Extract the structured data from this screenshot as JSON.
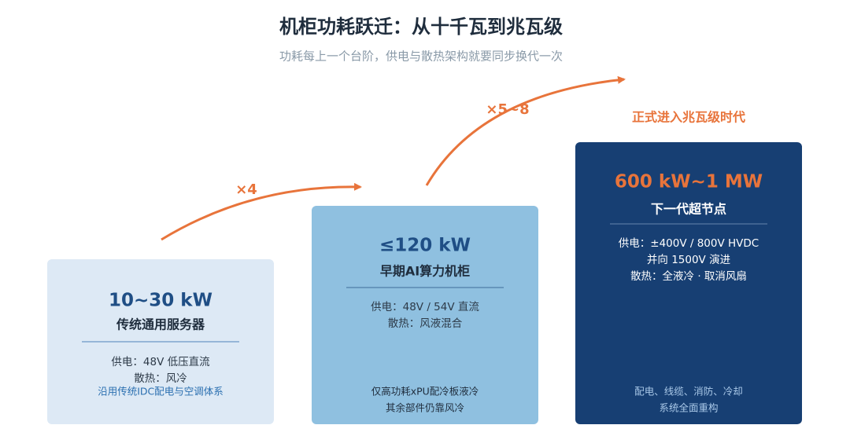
{
  "header": {
    "title": "机柜功耗跃迁：从十千瓦到兆瓦级",
    "subtitle": "功耗每上一个台阶，供电与散热架构就要同步换代一次"
  },
  "stages": [
    {
      "value": "10~30 kW",
      "name": "传统通用服务器",
      "specs": [
        "供电：48V 低压直流",
        "散热：风冷"
      ],
      "notes": [
        "沿用传统IDC配电与空调体系"
      ]
    },
    {
      "value": "≤120 kW",
      "name": "早期AI算力机柜",
      "specs": [
        "供电：48V / 54V 直流",
        "散热：风液混合"
      ],
      "notes": [
        "仅高功耗xPU配冷板液冷",
        "其余部件仍靠风冷"
      ]
    },
    {
      "value": "600 kW~1 MW",
      "name": "下一代超节点",
      "specs": [
        "供电：±400V / 800V HVDC",
        "并向 1500V 演进",
        "散热：全液冷 · 取消风扇"
      ],
      "notes": [
        "配电、线缆、消防、冷却",
        "系统全面重构"
      ]
    }
  ],
  "multipliers": [
    "×4",
    "×5~8"
  ],
  "banner": "正式进入兆瓦级时代"
}
